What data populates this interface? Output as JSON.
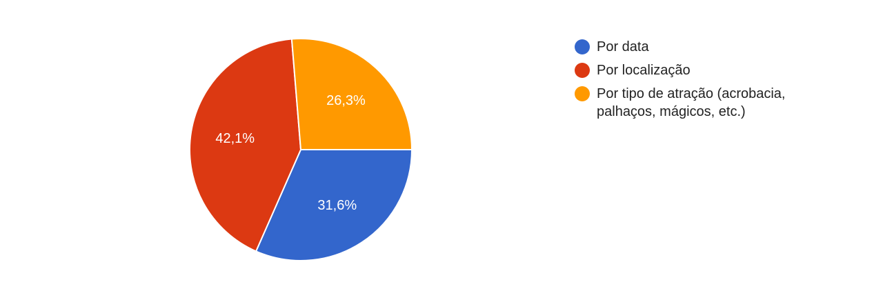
{
  "chart_data": {
    "type": "pie",
    "title": "",
    "legend_position": "right",
    "slices": [
      {
        "name": "Por data",
        "value": 31.6,
        "label": "31,6%",
        "color": "#3366cc"
      },
      {
        "name": "Por localização",
        "value": 42.1,
        "label": "42,1%",
        "color": "#dc3912"
      },
      {
        "name": "Por tipo de atração (acrobacia, palhaços, mágicos, etc.)",
        "value": 26.3,
        "label": "26,3%",
        "color": "#ff9900"
      }
    ]
  }
}
